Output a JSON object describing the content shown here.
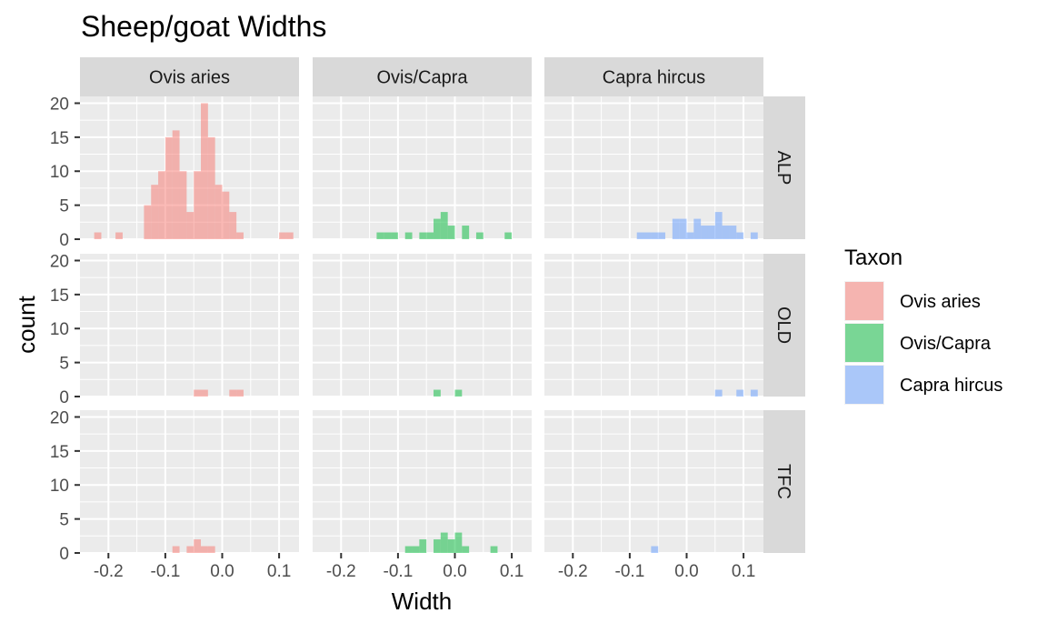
{
  "chart_data": {
    "type": "bar",
    "subtype": "faceted-histogram",
    "title": "Sheep/goat Widths",
    "xlabel": "Width",
    "ylabel": "count",
    "xlim": [
      -0.25,
      0.135
    ],
    "ylim": [
      0,
      21
    ],
    "bin_width": 0.0125,
    "x_ticks": [
      "-0.2",
      "-0.1",
      "0.0",
      "0.1"
    ],
    "x_tick_values": [
      -0.2,
      -0.1,
      0.0,
      0.1
    ],
    "y_ticks": [
      "0",
      "5",
      "10",
      "15",
      "20"
    ],
    "y_tick_values": [
      0,
      5,
      10,
      15,
      20
    ],
    "grid": true,
    "legend": {
      "title": "Taxon",
      "position": "right",
      "entries": [
        {
          "label": "Ovis aries",
          "color": "#F8766D"
        },
        {
          "label": "Ovis/Capra",
          "color": "#00BA38"
        },
        {
          "label": "Capra hircus",
          "color": "#619CFF"
        }
      ]
    },
    "bar_alpha": 0.5,
    "columns": [
      "Ovis aries",
      "Ovis/Capra",
      "Capra hircus"
    ],
    "rows": [
      "ALP",
      "OLD",
      "TFC"
    ],
    "panels": [
      {
        "row": "ALP",
        "col": "Ovis aries",
        "color": "#F8766D",
        "bins": [
          [
            -0.225,
            1
          ],
          [
            -0.1875,
            1
          ],
          [
            -0.1375,
            5
          ],
          [
            -0.125,
            8
          ],
          [
            -0.1125,
            10
          ],
          [
            -0.1,
            15
          ],
          [
            -0.0875,
            16
          ],
          [
            -0.075,
            10
          ],
          [
            -0.0625,
            4
          ],
          [
            -0.05,
            10
          ],
          [
            -0.0375,
            20
          ],
          [
            -0.025,
            15
          ],
          [
            -0.0125,
            8
          ],
          [
            0,
            7
          ],
          [
            0.0125,
            4
          ],
          [
            0.025,
            1
          ],
          [
            0.1,
            1
          ],
          [
            0.1125,
            1
          ]
        ]
      },
      {
        "row": "ALP",
        "col": "Ovis/Capra",
        "color": "#00BA38",
        "bins": [
          [
            -0.1375,
            1
          ],
          [
            -0.125,
            1
          ],
          [
            -0.1125,
            1
          ],
          [
            -0.0875,
            1
          ],
          [
            -0.0625,
            1
          ],
          [
            -0.05,
            1
          ],
          [
            -0.0375,
            3
          ],
          [
            -0.025,
            4
          ],
          [
            -0.0125,
            2
          ],
          [
            0.0125,
            2
          ],
          [
            0.0375,
            1
          ],
          [
            0.0875,
            1
          ]
        ]
      },
      {
        "row": "ALP",
        "col": "Capra hircus",
        "color": "#619CFF",
        "bins": [
          [
            -0.0875,
            1
          ],
          [
            -0.075,
            1
          ],
          [
            -0.0625,
            1
          ],
          [
            -0.05,
            1
          ],
          [
            -0.025,
            3
          ],
          [
            -0.0125,
            3
          ],
          [
            0,
            1
          ],
          [
            0.0125,
            3
          ],
          [
            0.025,
            2
          ],
          [
            0.0375,
            2
          ],
          [
            0.05,
            4
          ],
          [
            0.0625,
            2
          ],
          [
            0.075,
            2
          ],
          [
            0.0875,
            1
          ],
          [
            0.1125,
            1
          ]
        ]
      },
      {
        "row": "OLD",
        "col": "Ovis aries",
        "color": "#F8766D",
        "bins": [
          [
            -0.05,
            1
          ],
          [
            -0.0375,
            1
          ],
          [
            0.0125,
            1
          ],
          [
            0.025,
            1
          ]
        ]
      },
      {
        "row": "OLD",
        "col": "Ovis/Capra",
        "color": "#00BA38",
        "bins": [
          [
            -0.0375,
            1
          ],
          [
            0,
            1
          ]
        ]
      },
      {
        "row": "OLD",
        "col": "Capra hircus",
        "color": "#619CFF",
        "bins": [
          [
            0.05,
            1
          ],
          [
            0.0875,
            1
          ],
          [
            0.1125,
            1
          ]
        ]
      },
      {
        "row": "TFC",
        "col": "Ovis aries",
        "color": "#F8766D",
        "bins": [
          [
            -0.0875,
            1
          ],
          [
            -0.0625,
            1
          ],
          [
            -0.05,
            2
          ],
          [
            -0.0375,
            1
          ],
          [
            -0.025,
            1
          ]
        ]
      },
      {
        "row": "TFC",
        "col": "Ovis/Capra",
        "color": "#00BA38",
        "bins": [
          [
            -0.0875,
            1
          ],
          [
            -0.075,
            1
          ],
          [
            -0.0625,
            2
          ],
          [
            -0.0375,
            2
          ],
          [
            -0.025,
            3
          ],
          [
            -0.0125,
            2
          ],
          [
            0,
            3
          ],
          [
            0.0125,
            1
          ],
          [
            0.0625,
            1
          ]
        ]
      },
      {
        "row": "TFC",
        "col": "Capra hircus",
        "color": "#619CFF",
        "bins": [
          [
            -0.0625,
            1
          ]
        ]
      }
    ]
  }
}
